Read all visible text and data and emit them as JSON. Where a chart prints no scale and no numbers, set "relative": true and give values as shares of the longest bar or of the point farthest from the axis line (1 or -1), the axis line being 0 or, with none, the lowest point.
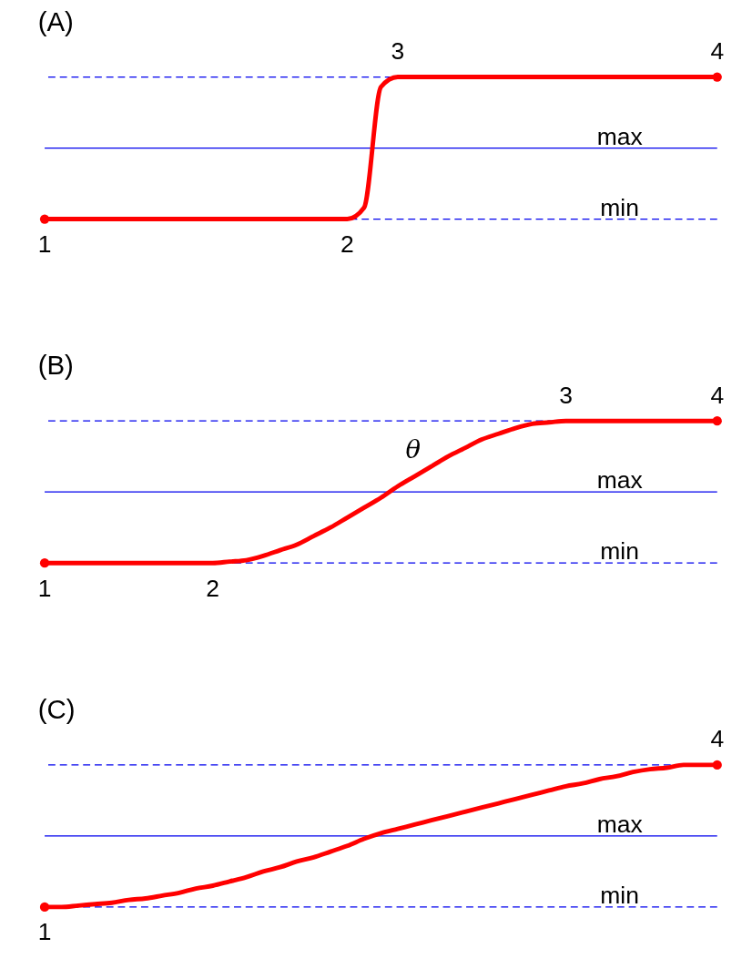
{
  "chart_data": [
    {
      "type": "line",
      "title": "(A)",
      "relative": true,
      "line_style": "solid",
      "categories": [
        "1",
        null,
        null,
        null,
        null,
        null,
        null,
        null,
        null,
        null,
        null,
        null,
        null,
        null,
        null,
        null,
        null,
        null,
        "2",
        null,
        null,
        "3",
        null,
        null,
        null,
        null,
        null,
        null,
        null,
        null,
        null,
        null,
        null,
        null,
        null,
        null,
        null,
        null,
        null,
        null,
        "4"
      ],
      "series": [
        {
          "color": "#ff0000",
          "values": [
            0,
            0,
            0,
            0,
            0,
            0,
            0,
            0,
            0,
            0,
            0,
            0,
            0,
            0,
            0,
            0,
            0,
            0,
            0,
            0.08,
            0.93,
            1,
            1,
            1,
            1,
            1,
            1,
            1,
            1,
            1,
            1,
            1,
            1,
            1,
            1,
            1,
            1,
            1,
            1,
            1,
            1
          ]
        },
        {
          "type": "scatter",
          "color": "#ff0000",
          "x": [
            "1",
            "4"
          ],
          "values": [
            0,
            1
          ]
        }
      ],
      "ref_lines": [
        {
          "axis": "y",
          "value": 1,
          "label": null,
          "color": "#0000ee",
          "line_style": "dashed"
        },
        {
          "axis": "y",
          "value": 0.5,
          "label": "max",
          "color": "#0000ee",
          "line_style": "solid"
        },
        {
          "axis": "y",
          "value": 0,
          "label": "min",
          "color": "#0000ee",
          "line_style": "dashed"
        }
      ]
    },
    {
      "type": "line",
      "title": "(B)",
      "relative": true,
      "line_style": "solid",
      "annotations": [
        "θ"
      ],
      "categories": [
        "1",
        null,
        null,
        null,
        null,
        null,
        null,
        null,
        null,
        null,
        "2",
        null,
        null,
        null,
        null,
        null,
        null,
        null,
        null,
        null,
        null,
        null,
        null,
        null,
        null,
        null,
        null,
        null,
        null,
        null,
        null,
        "3",
        null,
        null,
        null,
        null,
        null,
        null,
        null,
        null,
        "4"
      ],
      "series": [
        {
          "color": "#ff0000",
          "values": [
            0,
            0,
            0,
            0,
            0,
            0,
            0,
            0,
            0,
            0,
            0,
            0.01,
            0.02,
            0.05,
            0.09,
            0.13,
            0.19,
            0.25,
            0.32,
            0.39,
            0.46,
            0.54,
            0.61,
            0.68,
            0.75,
            0.81,
            0.87,
            0.91,
            0.95,
            0.98,
            0.99,
            1,
            1,
            1,
            1,
            1,
            1,
            1,
            1,
            1,
            1
          ]
        },
        {
          "type": "scatter",
          "color": "#ff0000",
          "x": [
            "1",
            "4"
          ],
          "values": [
            0,
            1
          ]
        }
      ],
      "ref_lines": [
        {
          "axis": "y",
          "value": 1,
          "label": null,
          "color": "#0000ee",
          "line_style": "dashed"
        },
        {
          "axis": "y",
          "value": 0.5,
          "label": "max",
          "color": "#0000ee",
          "line_style": "solid"
        },
        {
          "axis": "y",
          "value": 0,
          "label": "min",
          "color": "#0000ee",
          "line_style": "dashed"
        }
      ]
    },
    {
      "type": "line",
      "title": "(C)",
      "relative": true,
      "line_style": "solid",
      "categories": [
        "1",
        null,
        null,
        null,
        null,
        null,
        null,
        null,
        null,
        null,
        null,
        null,
        null,
        null,
        null,
        null,
        null,
        null,
        null,
        null,
        null,
        null,
        null,
        null,
        null,
        null,
        null,
        null,
        null,
        null,
        null,
        null,
        null,
        null,
        null,
        null,
        null,
        null,
        null,
        null,
        "4"
      ],
      "series": [
        {
          "color": "#ff0000",
          "values": [
            0,
            0,
            0.01,
            0.02,
            0.03,
            0.05,
            0.06,
            0.08,
            0.1,
            0.13,
            0.15,
            0.18,
            0.21,
            0.25,
            0.28,
            0.32,
            0.35,
            0.39,
            0.43,
            0.48,
            0.52,
            0.55,
            0.58,
            0.61,
            0.64,
            0.67,
            0.7,
            0.73,
            0.76,
            0.79,
            0.82,
            0.85,
            0.87,
            0.9,
            0.92,
            0.95,
            0.97,
            0.98,
            1,
            1,
            1
          ]
        },
        {
          "type": "scatter",
          "color": "#ff0000",
          "x": [
            "1",
            "4"
          ],
          "values": [
            0,
            1
          ]
        }
      ],
      "ref_lines": [
        {
          "axis": "y",
          "value": 1,
          "label": null,
          "color": "#0000ee",
          "line_style": "dashed"
        },
        {
          "axis": "y",
          "value": 0.5,
          "label": "max",
          "color": "#0000ee",
          "line_style": "solid"
        },
        {
          "axis": "y",
          "value": 0,
          "label": "min",
          "color": "#0000ee",
          "line_style": "dashed"
        }
      ]
    }
  ]
}
